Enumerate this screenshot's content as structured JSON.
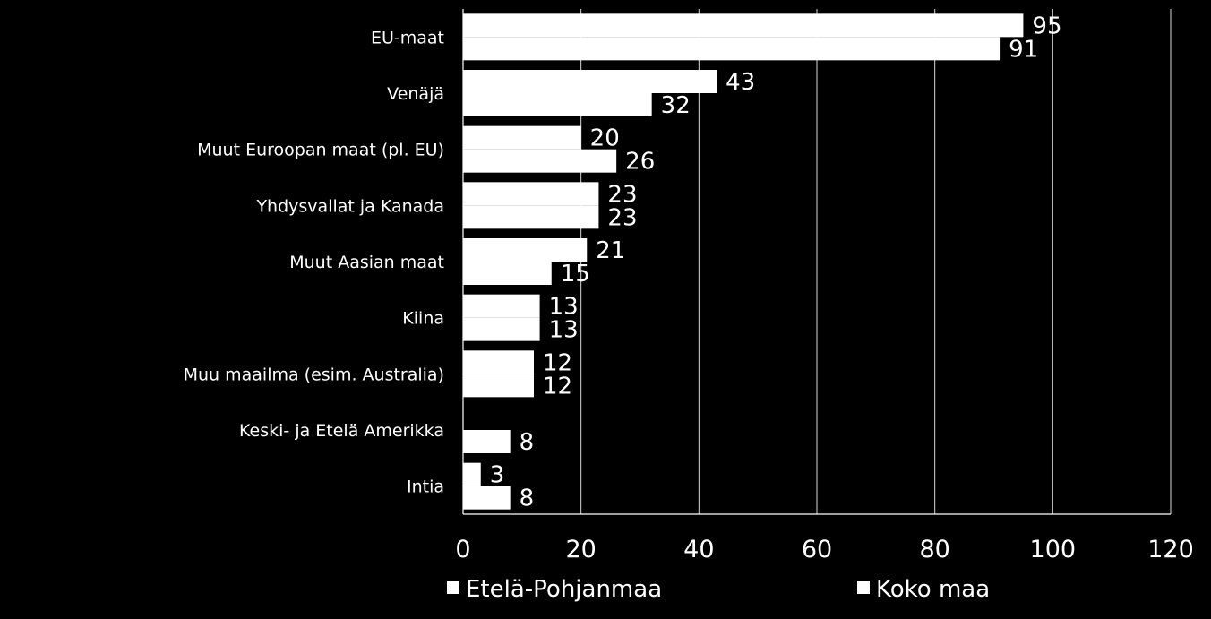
{
  "chart_data": {
    "type": "bar",
    "orientation": "horizontal",
    "categories": [
      "EU-maat",
      "Venäjä",
      "Muut Euroopan maat (pl. EU)",
      "Yhdysvallat ja Kanada",
      "Muut Aasian maat",
      "Kiina",
      "Muu maailma (esim. Australia)",
      "Keski- ja Etelä Amerikka",
      "Intia"
    ],
    "series": [
      {
        "name": "Etelä-Pohjanmaa",
        "values": [
          95,
          43,
          20,
          23,
          21,
          13,
          12,
          0,
          3
        ],
        "data_labels": [
          "95",
          "43",
          "20",
          "23",
          "21",
          "13",
          "12",
          "",
          "3"
        ]
      },
      {
        "name": "Koko maa",
        "values": [
          91,
          32,
          26,
          23,
          15,
          13,
          12,
          8,
          8
        ],
        "data_labels": [
          "91",
          "32",
          "26",
          "23",
          "15",
          "13",
          "12",
          "8",
          "8"
        ]
      }
    ],
    "xlim": [
      0,
      120
    ],
    "xticks": [
      "0",
      "20",
      "40",
      "60",
      "80",
      "100",
      "120"
    ],
    "grid": true,
    "legend_position": "bottom",
    "colors": {
      "background": "#000000",
      "bars": "#ffffff",
      "grid": "#d9d9d9",
      "text": "#ffffff"
    }
  }
}
